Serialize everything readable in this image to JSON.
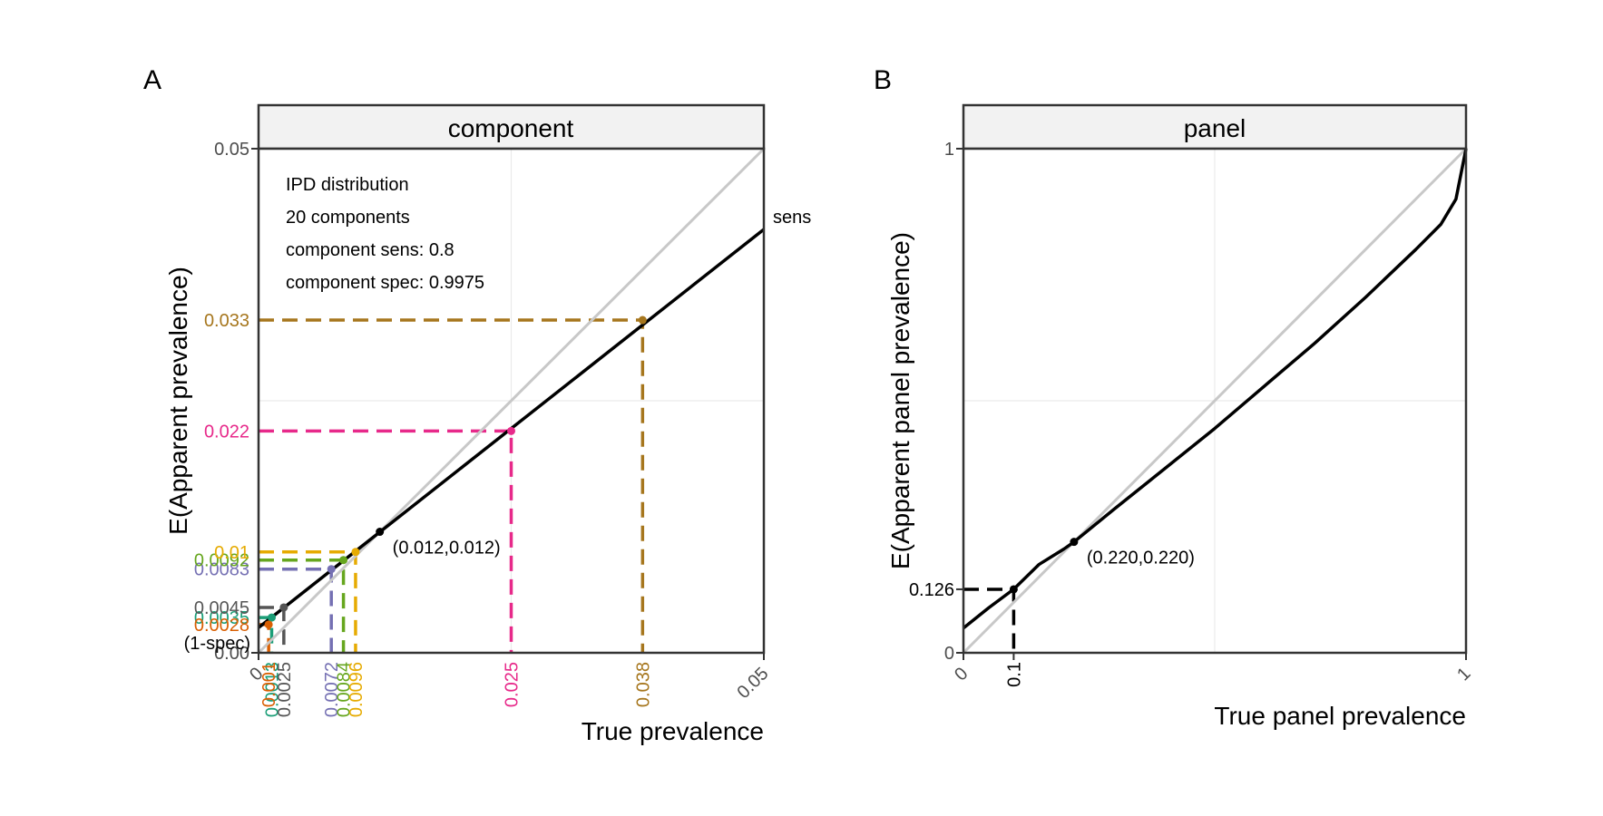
{
  "figure": {
    "panels": [
      {
        "letter": "A",
        "strip": "component",
        "xlabel": "True prevalence",
        "ylabel": "E(Apparent prevalence)"
      },
      {
        "letter": "B",
        "strip": "panel",
        "xlabel": "True panel prevalence",
        "ylabel": "E(Apparent panel prevalence)"
      }
    ]
  },
  "chart_data": [
    {
      "type": "line",
      "panel": "A",
      "title": "component",
      "xlabel": "True prevalence",
      "ylabel": "E(Apparent prevalence)",
      "xlim": [
        0,
        0.05
      ],
      "ylim": [
        0,
        0.05
      ],
      "x_ticks": [
        "0",
        "0.05"
      ],
      "y_ticks": [
        "0.00",
        "0.05"
      ],
      "grid": true,
      "annotation_lines": [
        "IPD distribution",
        "20 components",
        "component sens: 0.8",
        "component spec: 0.9975"
      ],
      "slope_label": "sens",
      "intercept_label": "(1-spec)",
      "series": [
        {
          "role": "identity",
          "color": "#c8c8c8",
          "x": [
            0,
            0.05
          ],
          "y": [
            0,
            0.05
          ]
        },
        {
          "role": "apparent",
          "color": "#000000",
          "x": [
            0,
            0.05
          ],
          "y": [
            0.0025,
            0.042
          ]
        }
      ],
      "crossover": {
        "x": 0.012,
        "y": 0.012,
        "label": "(0.012,0.012)"
      },
      "highlight_points": [
        {
          "x": 0.0013,
          "y": 0.0035,
          "x_label": "0.0013",
          "y_label": "0.0035",
          "color": "#1b9e77"
        },
        {
          "x": 0.0025,
          "y": 0.0045,
          "x_label": "0.0025",
          "y_label": "0.0045",
          "color": "#555555"
        },
        {
          "x": 0.001,
          "y": 0.0028,
          "x_label": "0.001",
          "y_label": "0.0028",
          "color": "#d95f02"
        },
        {
          "x": 0.0072,
          "y": 0.0083,
          "x_label": "0.0072",
          "y_label": "0.0083",
          "color": "#7570b3"
        },
        {
          "x": 0.0084,
          "y": 0.0092,
          "x_label": "0.0084",
          "y_label": "0.0092",
          "color": "#66a61e"
        },
        {
          "x": 0.0096,
          "y": 0.01,
          "x_label": "0.0096",
          "y_label": "0.01",
          "color": "#e6ab02"
        },
        {
          "x": 0.025,
          "y": 0.022,
          "x_label": "0.025",
          "y_label": "0.022",
          "color": "#e7298a"
        },
        {
          "x": 0.038,
          "y": 0.033,
          "x_label": "0.038",
          "y_label": "0.033",
          "color": "#a6761d"
        }
      ]
    },
    {
      "type": "line",
      "panel": "B",
      "title": "panel",
      "xlabel": "True panel prevalence",
      "ylabel": "E(Apparent panel prevalence)",
      "xlim": [
        0,
        1
      ],
      "ylim": [
        0,
        1
      ],
      "x_ticks": [
        "0",
        "1"
      ],
      "y_ticks": [
        "0",
        "1"
      ],
      "grid": true,
      "series": [
        {
          "role": "identity",
          "color": "#c8c8c8",
          "x": [
            0,
            1
          ],
          "y": [
            0,
            1
          ]
        },
        {
          "role": "apparent",
          "color": "#000000",
          "x": [
            0,
            0.05,
            0.1,
            0.15,
            0.2,
            0.22,
            0.3,
            0.4,
            0.5,
            0.6,
            0.7,
            0.8,
            0.9,
            0.95,
            0.98,
            1.0
          ],
          "y": [
            0.049,
            0.089,
            0.126,
            0.175,
            0.206,
            0.22,
            0.285,
            0.365,
            0.445,
            0.53,
            0.615,
            0.705,
            0.8,
            0.85,
            0.9,
            1.0
          ]
        }
      ],
      "crossover": {
        "x": 0.22,
        "y": 0.22,
        "label": "(0.220,0.220)"
      },
      "highlight_points": [
        {
          "x": 0.1,
          "y": 0.126,
          "x_label": "0.1",
          "y_label": "0.126",
          "color": "#000000"
        }
      ]
    }
  ]
}
